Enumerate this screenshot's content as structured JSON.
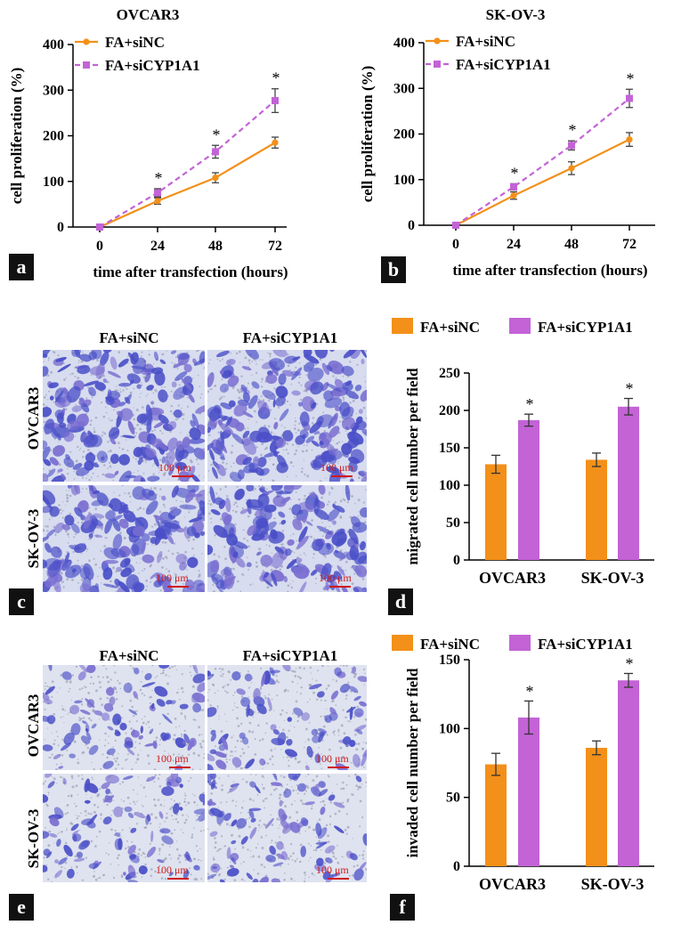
{
  "colors": {
    "siNC": "#f39019",
    "siCYP1A1": "#c363d6",
    "stain": "#4a4fc8",
    "scale": "#d11a1a"
  },
  "panels": {
    "a": "a",
    "b": "b",
    "c": "c",
    "d": "d",
    "e": "e",
    "f": "f"
  },
  "chart_data": [
    {
      "id": "a",
      "type": "line",
      "title": "OVCAR3",
      "xlabel": "time after transfection (hours)",
      "ylabel": "cell proliferation (%)",
      "x": [
        0,
        24,
        48,
        72
      ],
      "ylim": [
        0,
        400
      ],
      "yticks": [
        0,
        100,
        200,
        300,
        400
      ],
      "legend": "top-left",
      "series": [
        {
          "name": "FA+siNC",
          "style": "solid",
          "values": [
            0,
            57,
            108,
            185
          ],
          "errors": [
            3,
            7,
            11,
            12
          ]
        },
        {
          "name": "FA+siCYP1A1",
          "style": "dashed",
          "values": [
            0,
            75,
            165,
            277
          ],
          "errors": [
            3,
            9,
            14,
            26
          ]
        }
      ],
      "significance": [
        "",
        "*",
        "*",
        "*"
      ]
    },
    {
      "id": "b",
      "type": "line",
      "title": "SK-OV-3",
      "xlabel": "time after transfection (hours)",
      "ylabel": "cell proliferation (%)",
      "x": [
        0,
        24,
        48,
        72
      ],
      "ylim": [
        0,
        400
      ],
      "yticks": [
        0,
        100,
        200,
        300,
        400
      ],
      "legend": "top-left",
      "series": [
        {
          "name": "FA+siNC",
          "style": "solid",
          "values": [
            0,
            65,
            125,
            188
          ],
          "errors": [
            3,
            8,
            14,
            15
          ]
        },
        {
          "name": "FA+siCYP1A1",
          "style": "dashed",
          "values": [
            0,
            84,
            175,
            278
          ],
          "errors": [
            3,
            7,
            10,
            20
          ]
        }
      ],
      "significance": [
        "",
        "*",
        "*",
        "*"
      ]
    },
    {
      "id": "d",
      "type": "bar",
      "title": "",
      "xlabel": "",
      "ylabel": "migrated cell number per field",
      "categories": [
        "OVCAR3",
        "SK-OV-3"
      ],
      "ylim": [
        0,
        250
      ],
      "yticks": [
        0,
        50,
        100,
        150,
        200,
        250
      ],
      "legend": "top",
      "series": [
        {
          "name": "FA+siNC",
          "values": [
            128,
            134
          ],
          "errors": [
            12,
            9
          ]
        },
        {
          "name": "FA+siCYP1A1",
          "values": [
            187,
            205
          ],
          "errors": [
            8,
            11
          ]
        }
      ],
      "significance": [
        "*",
        "*"
      ]
    },
    {
      "id": "f",
      "type": "bar",
      "title": "",
      "xlabel": "",
      "ylabel": "invaded cell number per field",
      "categories": [
        "OVCAR3",
        "SK-OV-3"
      ],
      "ylim": [
        0,
        150
      ],
      "yticks": [
        0,
        50,
        100,
        150
      ],
      "legend": "top",
      "series": [
        {
          "name": "FA+siNC",
          "values": [
            74,
            86
          ],
          "errors": [
            8,
            5
          ]
        },
        {
          "name": "FA+siCYP1A1",
          "values": [
            108,
            135
          ],
          "errors": [
            12,
            5
          ]
        }
      ],
      "significance": [
        "*",
        "*"
      ]
    }
  ],
  "micrographs": {
    "c": {
      "columns": [
        "FA+siNC",
        "FA+siCYP1A1"
      ],
      "rows": [
        "OVCAR3",
        "SK-OV-3"
      ],
      "scale_label": "100 μm"
    },
    "e": {
      "columns": [
        "FA+siNC",
        "FA+siCYP1A1"
      ],
      "rows": [
        "OVCAR3",
        "SK-OV-3"
      ],
      "scale_label": "100 μm"
    }
  }
}
